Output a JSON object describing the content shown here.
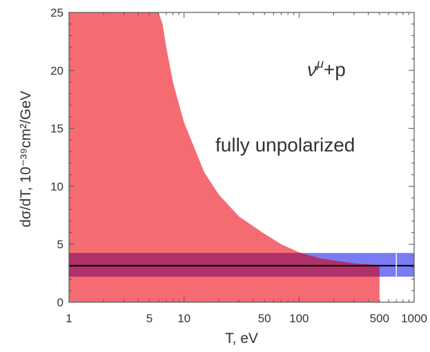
{
  "chart_data": {
    "type": "area",
    "title": "",
    "xlabel": "T, eV",
    "ylabel": "dσ/dT, 10⁻³⁹cm²/GeV",
    "x_scale": "log",
    "xlim": [
      1,
      1000
    ],
    "ylim": [
      0,
      25
    ],
    "x_ticks": [
      1,
      5,
      10,
      50,
      100,
      500,
      1000
    ],
    "x_tick_labels": [
      "1",
      "5",
      "10",
      "50",
      "100",
      "500",
      "1000"
    ],
    "y_ticks": [
      0,
      5,
      10,
      15,
      20,
      25
    ],
    "y_tick_labels": [
      "0",
      "5",
      "10",
      "15",
      "20",
      "25"
    ],
    "grid": false,
    "annotations": {
      "process": {
        "base": "ν",
        "sup": "μ",
        "rest": "+p"
      },
      "note": "fully unpolarized"
    },
    "series": [
      {
        "kind": "band",
        "color": "#f56b72",
        "x": [
          1,
          5,
          6,
          6.5,
          7,
          8,
          10,
          15,
          20,
          30,
          50,
          70,
          100,
          150,
          200,
          300,
          500
        ],
        "upper": [
          25,
          25,
          25,
          24,
          22,
          19,
          15.5,
          11.2,
          9.3,
          7.4,
          5.9,
          5.0,
          4.3,
          3.8,
          3.6,
          3.35,
          3.2
        ],
        "lower": [
          0,
          0,
          0,
          0,
          0,
          0,
          0,
          0,
          0,
          0,
          0,
          0,
          0,
          0,
          0,
          0,
          0
        ]
      },
      {
        "kind": "band",
        "color": "#7b7bf5",
        "x": [
          1,
          1000
        ],
        "upper": [
          4.25,
          4.25
        ],
        "lower": [
          2.2,
          2.2
        ]
      },
      {
        "kind": "line",
        "color": "#000000",
        "x": [
          1,
          1000
        ],
        "y": [
          3.15,
          3.15
        ]
      }
    ],
    "overlap_color": "#b0306a",
    "marker_line": {
      "x": 700,
      "color": "#ffffff"
    }
  }
}
